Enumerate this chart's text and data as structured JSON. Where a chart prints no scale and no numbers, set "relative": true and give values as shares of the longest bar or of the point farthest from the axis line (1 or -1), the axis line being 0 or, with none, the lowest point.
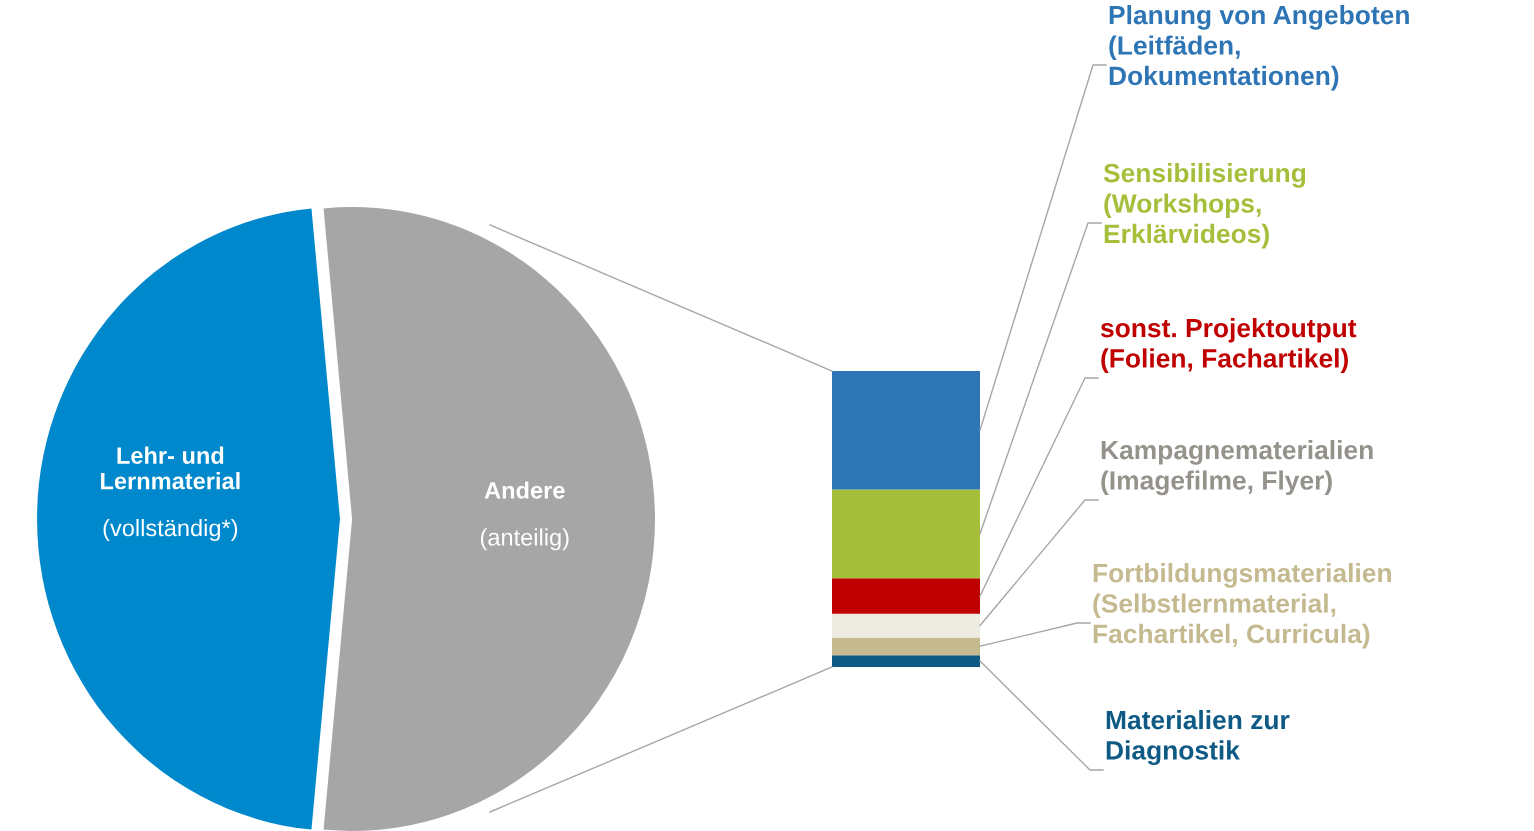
{
  "chart_data": [
    {
      "type": "pie",
      "categories": [
        "Lehr- und\nLernmaterial",
        "Andere"
      ],
      "values": [
        47,
        53
      ],
      "colors": [
        "#0088cc",
        "#a6a6a6"
      ],
      "annotations": [
        "(vollständig*)",
        "(anteilig)"
      ]
    },
    {
      "type": "bar",
      "stacked": true,
      "relative": true,
      "categories": [
        null
      ],
      "series": [
        {
          "name": "Materialien zur\nDiagnostik",
          "color": "#0e5a85",
          "values": [
            0.04
          ]
        },
        {
          "name": "Fortbildungsmaterialien\n(Selbstlernmaterial,\nFachartikel, Curricula)",
          "color": "#c4b98f",
          "values": [
            0.06
          ]
        },
        {
          "name": "Kampagnematerialien\n(Imagefilme, Flyer)",
          "color": "#eeece1",
          "values": [
            0.08
          ]
        },
        {
          "name": "sonst. Projektoutput\n(Folien, Fachartikel)",
          "color": "#c00000",
          "values": [
            0.12
          ]
        },
        {
          "name": "Sensibilisierung\n(Workshops,\nErklärvideos)",
          "color": "#a5bf3b",
          "values": [
            0.3
          ]
        },
        {
          "name": "Planung von Angeboten\n(Leitfäden,\nDokumentationen)",
          "color": "#2e75b6",
          "values": [
            0.4
          ]
        }
      ]
    }
  ]
}
